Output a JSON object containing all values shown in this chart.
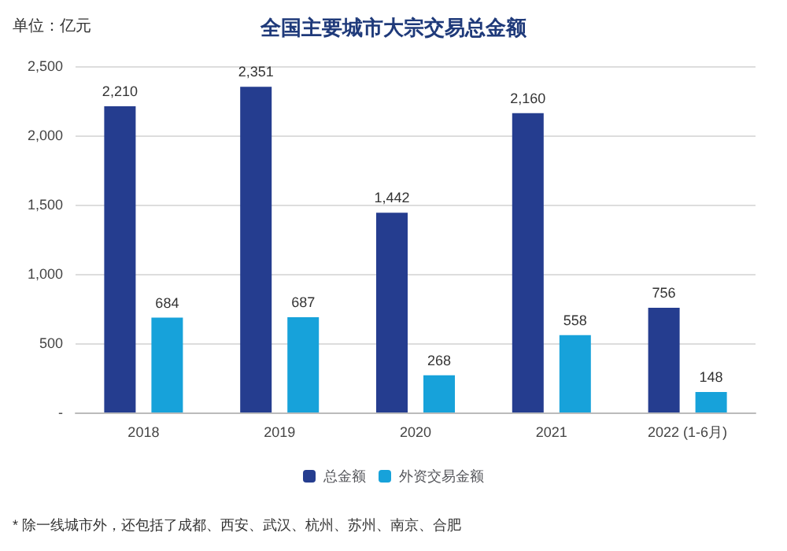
{
  "chart_data": {
    "type": "bar",
    "title": "全国主要城市大宗交易总金额",
    "ylabel": "单位：亿元",
    "categories": [
      "2018",
      "2019",
      "2020",
      "2021",
      "2022 (1-6月)"
    ],
    "series": [
      {
        "name": "总金额",
        "color": "#253d8f",
        "values": [
          2210,
          2351,
          1442,
          2160,
          756
        ]
      },
      {
        "name": "外资交易金额",
        "color": "#17a2da",
        "values": [
          684,
          687,
          268,
          558,
          148
        ]
      }
    ],
    "value_labels": [
      [
        "2,210",
        "2,351",
        "1,442",
        "2,160",
        "756"
      ],
      [
        "684",
        "687",
        "268",
        "558",
        "148"
      ]
    ],
    "ylim": [
      0,
      2500
    ],
    "yticks": [
      {
        "value": 0,
        "label": "-"
      },
      {
        "value": 500,
        "label": "500"
      },
      {
        "value": 1000,
        "label": "1,000"
      },
      {
        "value": 1500,
        "label": "1,500"
      },
      {
        "value": 2000,
        "label": "2,000"
      },
      {
        "value": 2500,
        "label": "2,500"
      }
    ],
    "grid": "y",
    "legend": "bottom",
    "annotations": [
      "* 除一线城市外，还包括了成都、西安、武汉、杭州、苏州、南京、合肥"
    ]
  }
}
